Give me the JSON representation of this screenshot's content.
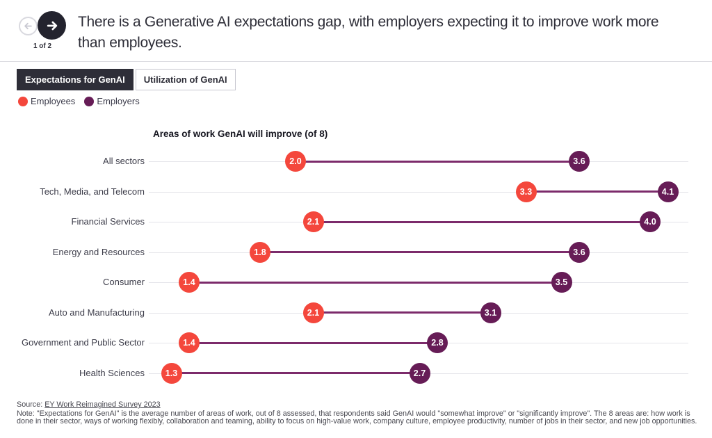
{
  "header": {
    "title": "There is a Generative AI expectations gap, with employers expecting it to improve work more than employees.",
    "pagination": "1 of 2"
  },
  "tabs": [
    {
      "label": "Expectations for GenAI",
      "active": true
    },
    {
      "label": "Utilization of GenAI",
      "active": false
    }
  ],
  "legend": {
    "items": [
      {
        "label": "Employees",
        "color": "#f4473c"
      },
      {
        "label": "Employers",
        "color": "#661c56"
      }
    ]
  },
  "chart_data": {
    "type": "dumbbell",
    "title": "Areas of work GenAI will improve (of 8)",
    "categories": [
      "All sectors",
      "Tech, Media, and Telecom",
      "Financial Services",
      "Energy and Resources",
      "Consumer",
      "Auto and Manufacturing",
      "Government and Public Sector",
      "Health Sciences"
    ],
    "series": [
      {
        "name": "Employees",
        "color": "#f4473c",
        "values": [
          2.0,
          3.3,
          2.1,
          1.8,
          1.4,
          2.1,
          1.4,
          1.3
        ]
      },
      {
        "name": "Employers",
        "color": "#661c56",
        "values": [
          3.6,
          4.1,
          4.0,
          3.6,
          3.5,
          3.1,
          2.8,
          2.7
        ]
      }
    ],
    "connector_color": "#7c2b6b",
    "xlim": [
      1.0,
      4.35
    ],
    "grid": false,
    "legend_position": "top-left"
  },
  "footer": {
    "source_prefix": "Source: ",
    "source_link": "EY Work Reimagined Survey 2023",
    "note": "Note: \"Expectations for GenAI\" is the average number of areas of work, out of 8 assessed, that respondents said GenAI would \"somewhat improve\" or \"significantly improve\". The 8 areas are: how work is done in their sector, ways of working flexibly, collaboration and teaming, ability to focus on high-value work, company culture, employee productivity, number of jobs in their sector, and new job opportunities."
  }
}
